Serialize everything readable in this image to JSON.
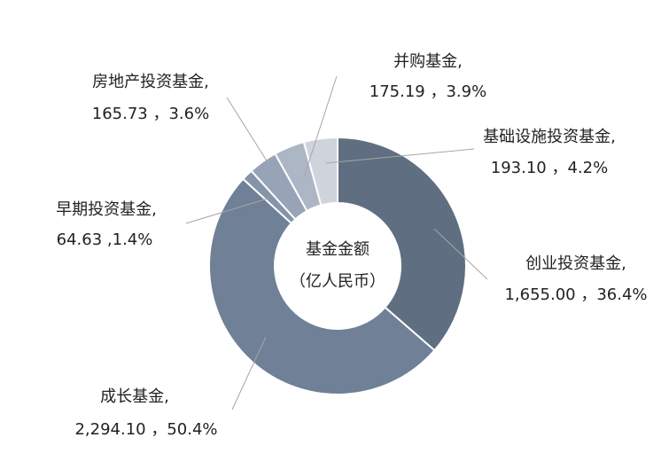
{
  "chart_data": {
    "type": "donut",
    "center_title": "基金金额",
    "center_subtitle": "（亿人民币）",
    "categories": [
      "创业投资基金,",
      "成长基金,",
      "早期投资基金,",
      "房地产投资基金,",
      "并购基金,",
      "基础设施投资基金,"
    ],
    "values": [
      1655.0,
      2294.1,
      64.63,
      165.73,
      175.19,
      193.1
    ],
    "value_labels": [
      "1,655.00 ，36.4%",
      "2,294.10 ，50.4%",
      "64.63 ,1.4%",
      "165.73 ，3.6%",
      "175.19 ，3.9%",
      "193.10 ，4.2%"
    ],
    "colors": [
      "#5f6f81",
      "#6f8097",
      "#8494a9",
      "#97a3b6",
      "#adb6c4",
      "#cfd4dc"
    ]
  }
}
